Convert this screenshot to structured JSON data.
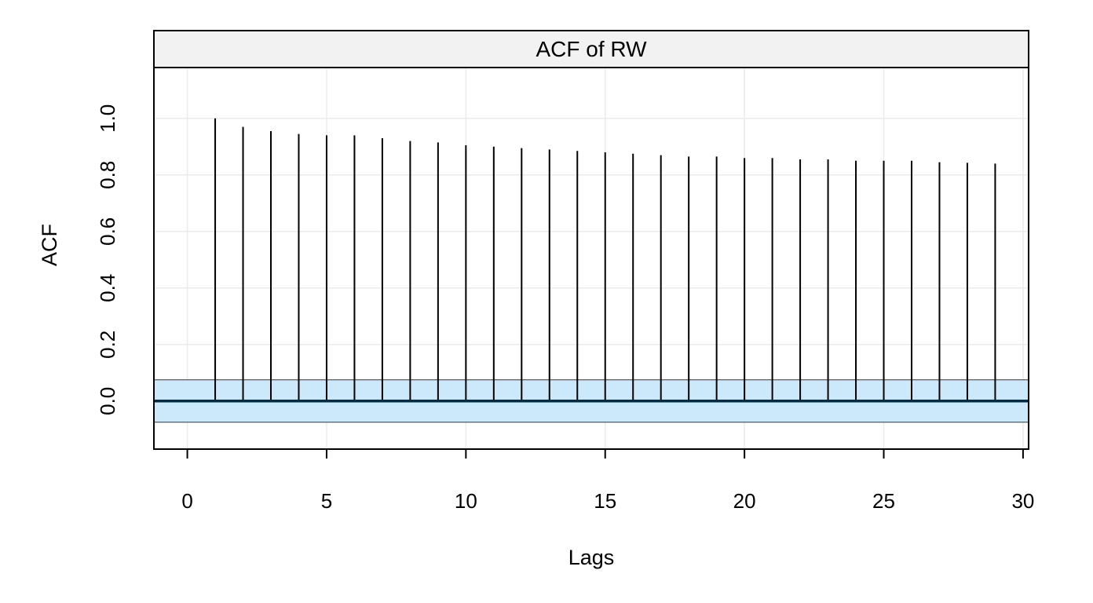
{
  "chart_data": {
    "type": "bar",
    "title": "ACF of RW",
    "xlabel": "Lags",
    "ylabel": "ACF",
    "xlim": [
      -1.2,
      30.2
    ],
    "ylim": [
      -0.17,
      1.18
    ],
    "x_ticks": [
      "0",
      "5",
      "10",
      "15",
      "20",
      "25",
      "30"
    ],
    "y_ticks": [
      "0.0",
      "0.2",
      "0.4",
      "0.6",
      "0.8",
      "1.0"
    ],
    "confidence_band": [
      -0.075,
      0.075
    ],
    "grid": true,
    "x": [
      1,
      2,
      3,
      4,
      5,
      6,
      7,
      8,
      9,
      10,
      11,
      12,
      13,
      14,
      15,
      16,
      17,
      18,
      19,
      20,
      21,
      22,
      23,
      24,
      25,
      26,
      27,
      28,
      29
    ],
    "values": [
      1.0,
      0.97,
      0.955,
      0.945,
      0.94,
      0.94,
      0.93,
      0.92,
      0.915,
      0.905,
      0.9,
      0.895,
      0.89,
      0.885,
      0.88,
      0.875,
      0.87,
      0.865,
      0.865,
      0.86,
      0.86,
      0.855,
      0.855,
      0.85,
      0.85,
      0.85,
      0.845,
      0.843,
      0.84
    ],
    "colors": {
      "band_fill": "#cce8fb",
      "strip_fill": "#f2f2f2",
      "grid": "#ebebeb",
      "lines": "#000000",
      "zero_line": "#002b45"
    }
  }
}
